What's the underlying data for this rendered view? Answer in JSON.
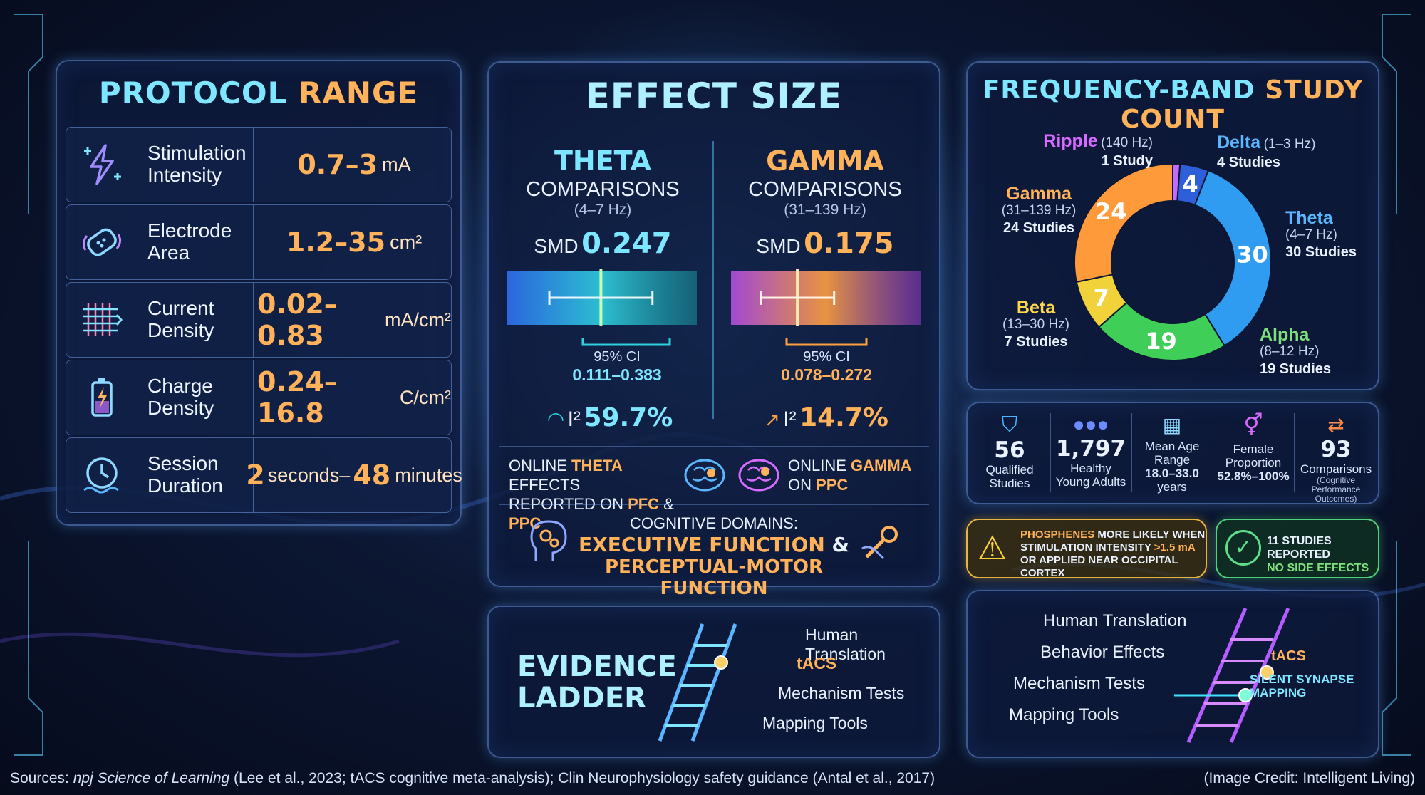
{
  "protocol": {
    "title_a": "PROTOCOL",
    "title_b": "RANGE",
    "rows": [
      {
        "icon": "lightning-icon",
        "label1": "Stimulation",
        "label2": "Intensity",
        "value": "0.7–3",
        "unit": "mA"
      },
      {
        "icon": "electrode-patch-icon",
        "label1": "Electrode",
        "label2": "Area",
        "value": "1.2–35",
        "unit": "cm²"
      },
      {
        "icon": "current-grid-icon",
        "label1": "Current",
        "label2": "Density",
        "value": "0.02–0.83",
        "unit": "mA/cm²"
      },
      {
        "icon": "battery-charge-icon",
        "label1": "Charge",
        "label2": "Density",
        "value": "0.24–16.8",
        "unit": "C/cm²"
      },
      {
        "icon": "clock-icon",
        "label1": "Session",
        "label2": "Duration",
        "value_a": "2",
        "mid": "seconds–",
        "value_b": "48",
        "unit": "minutes"
      }
    ]
  },
  "effect": {
    "title": "EFFECT SIZE",
    "theta": {
      "name": "THETA",
      "sub": "COMPARISONS",
      "range": "(4–7 Hz)",
      "smd_label": "SMD",
      "smd": "0.247",
      "ci_label": "95% CI",
      "ci": "0.111–0.383",
      "i2_label": "I²",
      "i2": "59.7%",
      "color": "#3fd3e8"
    },
    "gamma": {
      "name": "GAMMA",
      "sub": "COMPARISONS",
      "range": "(31–139 Hz)",
      "smd_label": "SMD",
      "smd": "0.175",
      "ci_label": "95% CI",
      "ci": "0.078–0.272",
      "i2_label": "I²",
      "i2": "14.7%",
      "color": "#ffa040"
    },
    "online_theta": {
      "p1": "ONLINE ",
      "h1": "THETA",
      "p2": " EFFECTS",
      "p3": "REPORTED ON ",
      "h2": "PFC",
      "p4": " & ",
      "h3": "PPC"
    },
    "online_gamma": {
      "p1": "ONLINE ",
      "h1": "GAMMA",
      "p2": "ON ",
      "h2": "PPC"
    },
    "domains": {
      "label": "COGNITIVE DOMAINS:",
      "line1a": "EXECUTIVE FUNCTION",
      "line1b": " &",
      "line2": "PERCEPTUAL-MOTOR FUNCTION"
    }
  },
  "freq": {
    "title_a": "FREQUENCY-BAND",
    "title_b": "STUDY COUNT",
    "chart_data": {
      "type": "pie",
      "categories": [
        "Ripple",
        "Delta",
        "Theta",
        "Alpha",
        "Beta",
        "Gamma"
      ],
      "values": [
        1,
        4,
        30,
        19,
        7,
        24
      ],
      "colors": [
        "#c46bff",
        "#2f5fd8",
        "#2f9cf2",
        "#3fcf58",
        "#f2d23a",
        "#ff9a3a"
      ]
    },
    "labels": [
      {
        "name": "Ripple",
        "range": "(140 Hz)",
        "count": "1 Study"
      },
      {
        "name": "Delta",
        "range": "(1–3 Hz)",
        "count": "4 Studies"
      },
      {
        "name": "Theta",
        "range": "(4–7 Hz)",
        "count": "30 Studies"
      },
      {
        "name": "Alpha",
        "range": "(8–12 Hz)",
        "count": "19 Studies"
      },
      {
        "name": "Beta",
        "range": "(13–30 Hz)",
        "count": "7 Studies"
      },
      {
        "name": "Gamma",
        "range": "(31–139 Hz)",
        "count": "24 Studies"
      }
    ],
    "slice_labels": [
      "",
      "4",
      "30",
      "19",
      "7",
      "24"
    ]
  },
  "stats": [
    {
      "icon": "shield-check-icon",
      "n": "56",
      "l1": "Qualified",
      "l2": "Studies"
    },
    {
      "icon": "people-icon",
      "n": "1,797",
      "l1": "Healthy",
      "l2": "Young Adults"
    },
    {
      "icon": "calendar-icon",
      "n": "",
      "l1": "Mean Age",
      "l2": "Range",
      "l3": "18.0–33.0",
      "l4": "years"
    },
    {
      "icon": "gender-icon",
      "n": "",
      "l1": "Female",
      "l2": "Proportion",
      "l3": "52.8%–100%"
    },
    {
      "icon": "swap-arrows-icon",
      "n": "93",
      "l1": "Comparisons",
      "l2": "(Cognitive",
      "l3": "Performance Outcomes)"
    }
  ],
  "warning": {
    "h": "PHOSPHENES",
    "t1": " MORE LIKELY WHEN",
    "t2": "STIMULATION INTENSITY ",
    "h2": ">1.5 mA",
    "t3": "OR APPLIED NEAR OCCIPITAL CORTEX"
  },
  "safe": {
    "t1": "11 STUDIES REPORTED",
    "t2": "NO SIDE EFFECTS"
  },
  "ladder1": {
    "title1": "EVIDENCE",
    "title2": "LADDER",
    "steps": [
      "Human Translation",
      "tACS",
      "Mechanism Tests",
      "Mapping Tools"
    ]
  },
  "ladder2": {
    "steps": [
      "Human Translation",
      "Behavior Effects",
      "Mechanism Tests",
      "Mapping Tools"
    ],
    "tag1": "tACS",
    "tag2a": "SILENT SYNAPSE",
    "tag2b": "MAPPING"
  },
  "footer": {
    "sources_a": "Sources: ",
    "sources_i": "npj Science of Learning",
    "sources_b": " (Lee et al., 2023; tACS cognitive meta-analysis); Clin Neurophysiology safety guidance (Antal et al., 2017)",
    "credit": "(Image Credit: Intelligent Living)"
  }
}
